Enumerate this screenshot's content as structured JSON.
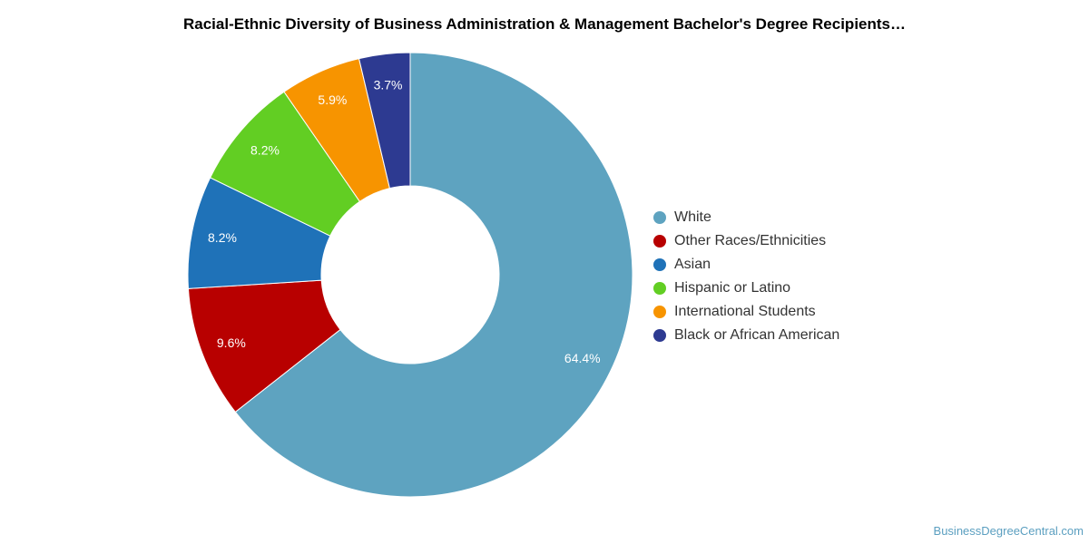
{
  "chart_data": {
    "type": "pie",
    "donut": true,
    "title": "Racial-Ethnic Diversity of Business Administration & Management Bachelor's Degree Recipients…",
    "legend_position": "right",
    "slices": [
      {
        "name": "White",
        "value": 64.4,
        "label": "64.4%",
        "color": "#5ea3c0"
      },
      {
        "name": "Other Races/Ethnicities",
        "value": 9.6,
        "label": "9.6%",
        "color": "#b80000"
      },
      {
        "name": "Asian",
        "value": 8.2,
        "label": "8.2%",
        "color": "#1f72b8"
      },
      {
        "name": "Hispanic or Latino",
        "value": 8.2,
        "label": "8.2%",
        "color": "#62ce23"
      },
      {
        "name": "International Students",
        "value": 5.9,
        "label": "5.9%",
        "color": "#f79400"
      },
      {
        "name": "Black or African American",
        "value": 3.7,
        "label": "3.7%",
        "color": "#2d3a91"
      }
    ]
  },
  "watermark": "BusinessDegreeCentral.com"
}
